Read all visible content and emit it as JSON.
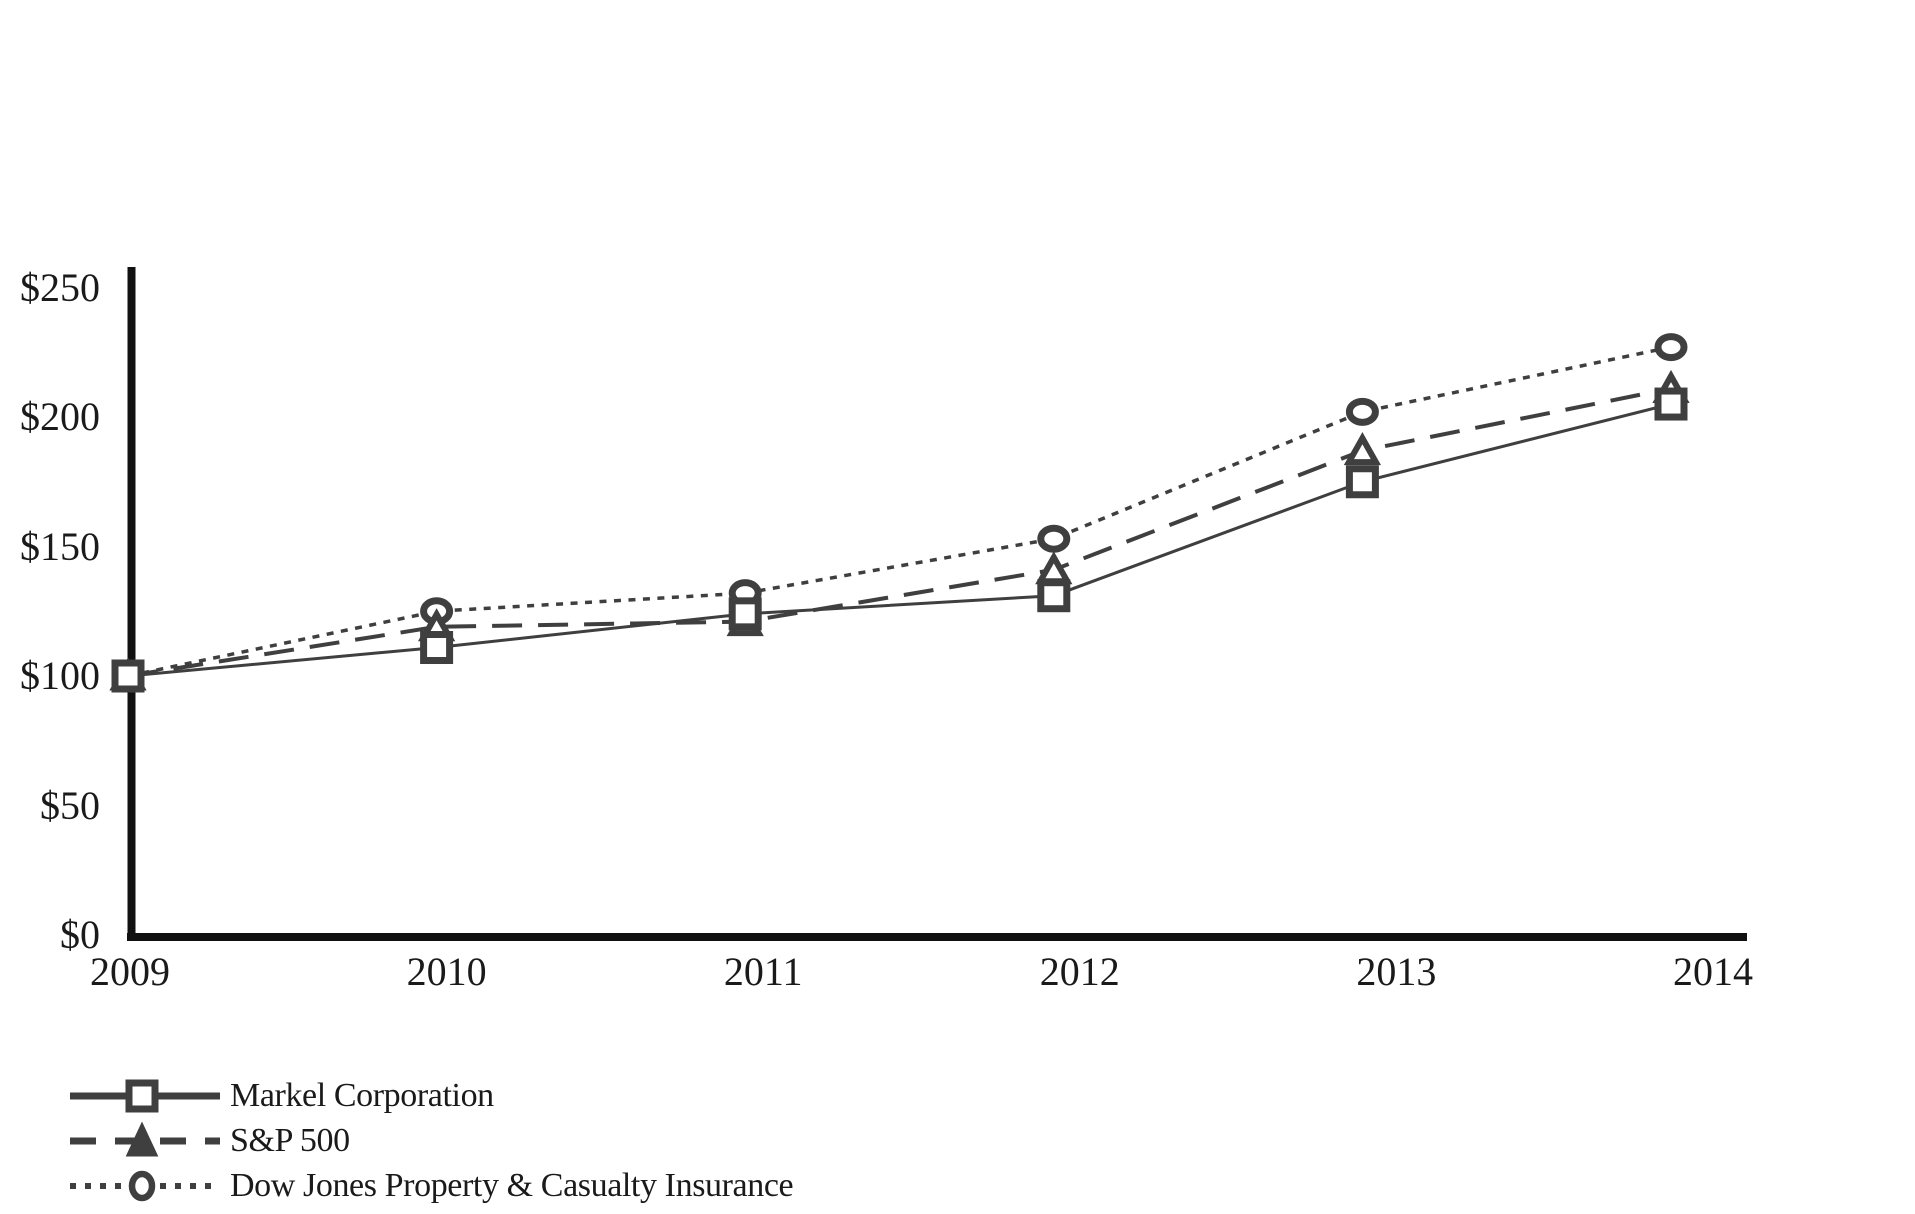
{
  "chart_data": {
    "type": "line",
    "x_labels": [
      "2009",
      "2010",
      "2011",
      "2012",
      "2013",
      "2014"
    ],
    "y_ticks": [
      {
        "label": "$0",
        "value": 0
      },
      {
        "label": "$50",
        "value": 50
      },
      {
        "label": "$100",
        "value": 100
      },
      {
        "label": "$150",
        "value": 150
      },
      {
        "label": "$200",
        "value": 200
      },
      {
        "label": "$250",
        "value": 250
      }
    ],
    "ylim": [
      0,
      250
    ],
    "grid": false,
    "legend_position": "bottom-left",
    "series": [
      {
        "name": "Markel Corporation",
        "marker": "square",
        "line_style": "solid",
        "values": [
          100,
          111,
          124,
          131,
          175,
          205
        ]
      },
      {
        "name": "S&P 500",
        "marker": "triangle",
        "line_style": "dashed",
        "values": [
          100,
          119,
          121,
          141,
          187,
          211
        ]
      },
      {
        "name": "Dow Jones Property & Casualty Insurance",
        "marker": "circle",
        "line_style": "dotted",
        "values": [
          100,
          125,
          132,
          153,
          202,
          227
        ]
      }
    ],
    "colors": {
      "axis": "#111111",
      "line": "#3f3f3f",
      "marker_stroke": "#3f3f3f",
      "marker_fill": "#ffffff",
      "text": "#1a1a1a"
    }
  }
}
